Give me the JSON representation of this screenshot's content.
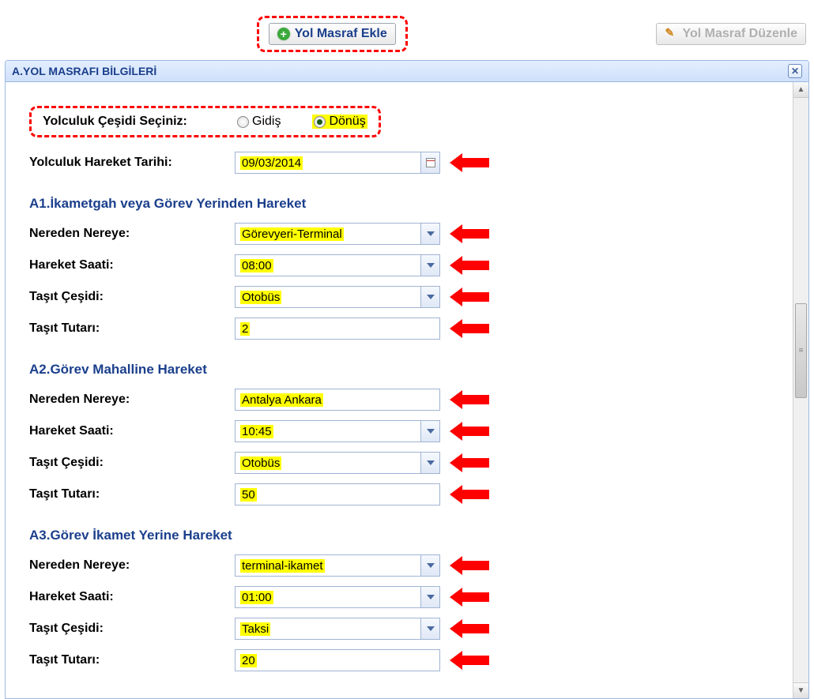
{
  "top": {
    "add_label": "Yol Masraf Ekle",
    "edit_label": "Yol Masraf Düzenle"
  },
  "panel": {
    "title": "A.YOL MASRAFI BİLGİLERİ"
  },
  "trip_type": {
    "label": "Yolculuk Çeşidi Seçiniz:",
    "option_go": "Gidiş",
    "option_return": "Dönüş",
    "selected": "return"
  },
  "date": {
    "label": "Yolculuk Hareket Tarihi:",
    "value": "09/03/2014"
  },
  "sections": {
    "a1": {
      "title": "A1.İkametgah veya Görev Yerinden Hareket",
      "from_to_label": "Nereden Nereye:",
      "from_to_value": "Görevyeri-Terminal",
      "time_label": "Hareket Saati:",
      "time_value": "08:00",
      "vehicle_label": "Taşıt Çeşidi:",
      "vehicle_value": "Otobüs",
      "amount_label": "Taşıt Tutarı:",
      "amount_value": "2"
    },
    "a2": {
      "title": "A2.Görev Mahalline Hareket",
      "from_to_label": "Nereden Nereye:",
      "from_to_value": "Antalya Ankara",
      "time_label": "Hareket Saati:",
      "time_value": "10:45",
      "vehicle_label": "Taşıt Çeşidi:",
      "vehicle_value": "Otobüs",
      "amount_label": "Taşıt Tutarı:",
      "amount_value": "50"
    },
    "a3": {
      "title": "A3.Görev İkamet Yerine Hareket",
      "from_to_label": "Nereden Nereye:",
      "from_to_value": "terminal-ikamet",
      "time_label": "Hareket Saati:",
      "time_value": "01:00",
      "vehicle_label": "Taşıt Çeşidi:",
      "vehicle_value": "Taksi",
      "amount_label": "Taşıt Tutarı:",
      "amount_value": "20"
    }
  },
  "highlight_color": "#ffff00",
  "accent_color": "#1b3f8c",
  "arrow_color": "#ff0000"
}
